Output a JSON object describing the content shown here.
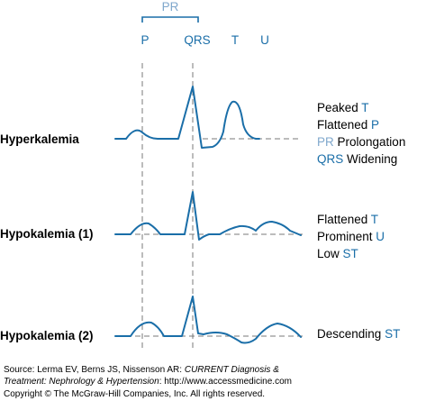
{
  "top_labels": {
    "pr": "PR",
    "p": "P",
    "qrs": "QRS",
    "t": "T",
    "u": "U"
  },
  "rows": [
    {
      "label": "Hyperkalemia",
      "findings": [
        {
          "prefix": "Peaked ",
          "key": "T",
          "suffix": ""
        },
        {
          "prefix": "Flattened ",
          "key": "P",
          "suffix": ""
        },
        {
          "prefix": "",
          "key": "PR",
          "suffix": " Prolongation"
        },
        {
          "prefix": "",
          "key": "QRS",
          "suffix": " Widening"
        }
      ]
    },
    {
      "label": "Hypokalemia (1)",
      "findings": [
        {
          "prefix": "Flattened ",
          "key": "T",
          "suffix": ""
        },
        {
          "prefix": "Prominent ",
          "key": "U",
          "suffix": ""
        },
        {
          "prefix": "Low ",
          "key": "ST",
          "suffix": ""
        }
      ]
    },
    {
      "label": "Hypokalemia (2)",
      "findings": [
        {
          "prefix": "Descending ",
          "key": "ST",
          "suffix": ""
        }
      ]
    }
  ],
  "source": {
    "prefix": "Source: Lerma EV, Berns JS, Nissenson AR: ",
    "title_line1": "CURRENT Diagnosis &",
    "title_line2": "Treatment: Nephrology & Hypertension",
    "suffix": ": http://www.accessmedicine.com"
  },
  "copyright": "Copyright © The McGraw-Hill Companies, Inc. All rights reserved.",
  "colors": {
    "wave": "#1a6ea8",
    "highlight": "#1a6ea8",
    "highlight_light": "#7fa7cc",
    "dashed": "#7a7a7a"
  }
}
